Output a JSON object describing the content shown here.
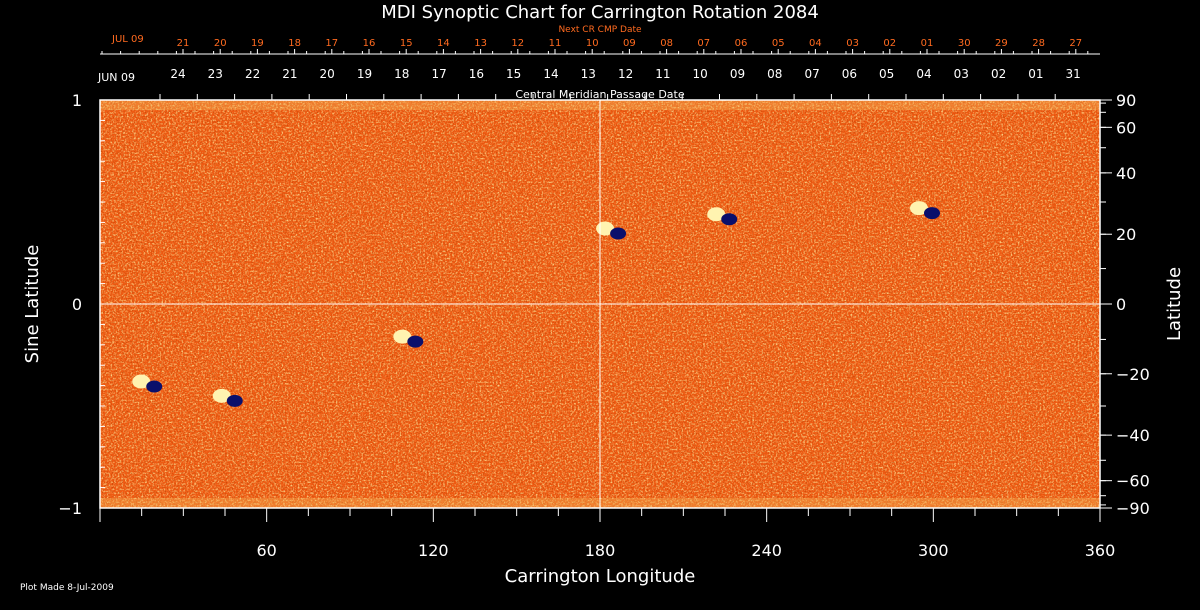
{
  "chart_data": {
    "type": "heatmap",
    "title": "MDI Synoptic Chart for Carrington Rotation 2084",
    "xlabel": "Carrington Longitude",
    "ylabel_left": "Sine Latitude",
    "ylabel_right": "Latitude",
    "top_axis_label": "Central Meridian Passage Date",
    "next_cr_label": "Next CR CMP Date",
    "xlim": [
      0,
      360
    ],
    "ylim": [
      -1,
      1
    ],
    "x_ticks": [
      60,
      120,
      180,
      240,
      300,
      360
    ],
    "x_tick_labels": [
      "60",
      "120",
      "180",
      "240",
      "300",
      "360"
    ],
    "left_ticks": [
      1,
      0,
      -1
    ],
    "left_tick_labels": [
      "1",
      "0",
      "−1"
    ],
    "right_ticks": [
      90,
      60,
      40,
      20,
      0,
      -20,
      -40,
      -60,
      -90
    ],
    "right_tick_labels": [
      "90",
      "60",
      "40",
      "20",
      "0",
      "−20",
      "−40",
      "−60",
      "−90"
    ],
    "cmp_month_label": "JUN 09",
    "cmp_dates": [
      "24",
      "23",
      "22",
      "21",
      "20",
      "19",
      "18",
      "17",
      "16",
      "15",
      "14",
      "13",
      "12",
      "11",
      "10",
      "09",
      "08",
      "07",
      "06",
      "05",
      "04",
      "03",
      "02",
      "01",
      "31"
    ],
    "next_month_label": "JUL 09",
    "next_dates": [
      "21",
      "20",
      "19",
      "18",
      "17",
      "16",
      "15",
      "14",
      "13",
      "12",
      "11",
      "10",
      "09",
      "08",
      "07",
      "06",
      "05",
      "04",
      "03",
      "02",
      "01",
      "30",
      "29",
      "28",
      "27"
    ],
    "features": [
      {
        "name": "active-region-1",
        "lon": 297,
        "lat_sine": 0.46,
        "polarity": "bipolar"
      },
      {
        "name": "active-region-2",
        "lon": 184,
        "lat_sine": 0.36,
        "polarity": "bipolar"
      },
      {
        "name": "active-region-3",
        "lon": 224,
        "lat_sine": 0.43,
        "polarity": "bipolar"
      },
      {
        "name": "active-region-4",
        "lon": 17,
        "lat_sine": -0.39,
        "polarity": "bipolar"
      },
      {
        "name": "active-region-5",
        "lon": 46,
        "lat_sine": -0.46,
        "polarity": "bipolar"
      },
      {
        "name": "active-region-6",
        "lon": 111,
        "lat_sine": -0.17,
        "polarity": "bipolar"
      }
    ],
    "colors": {
      "background": "#000000",
      "map_base": "#f05a12",
      "positive": "#fff3b0",
      "negative": "#0a0f6b",
      "next_dates": "#ff6a1f"
    }
  },
  "footer": {
    "plot_made": "Plot Made  8-Jul-2009"
  }
}
